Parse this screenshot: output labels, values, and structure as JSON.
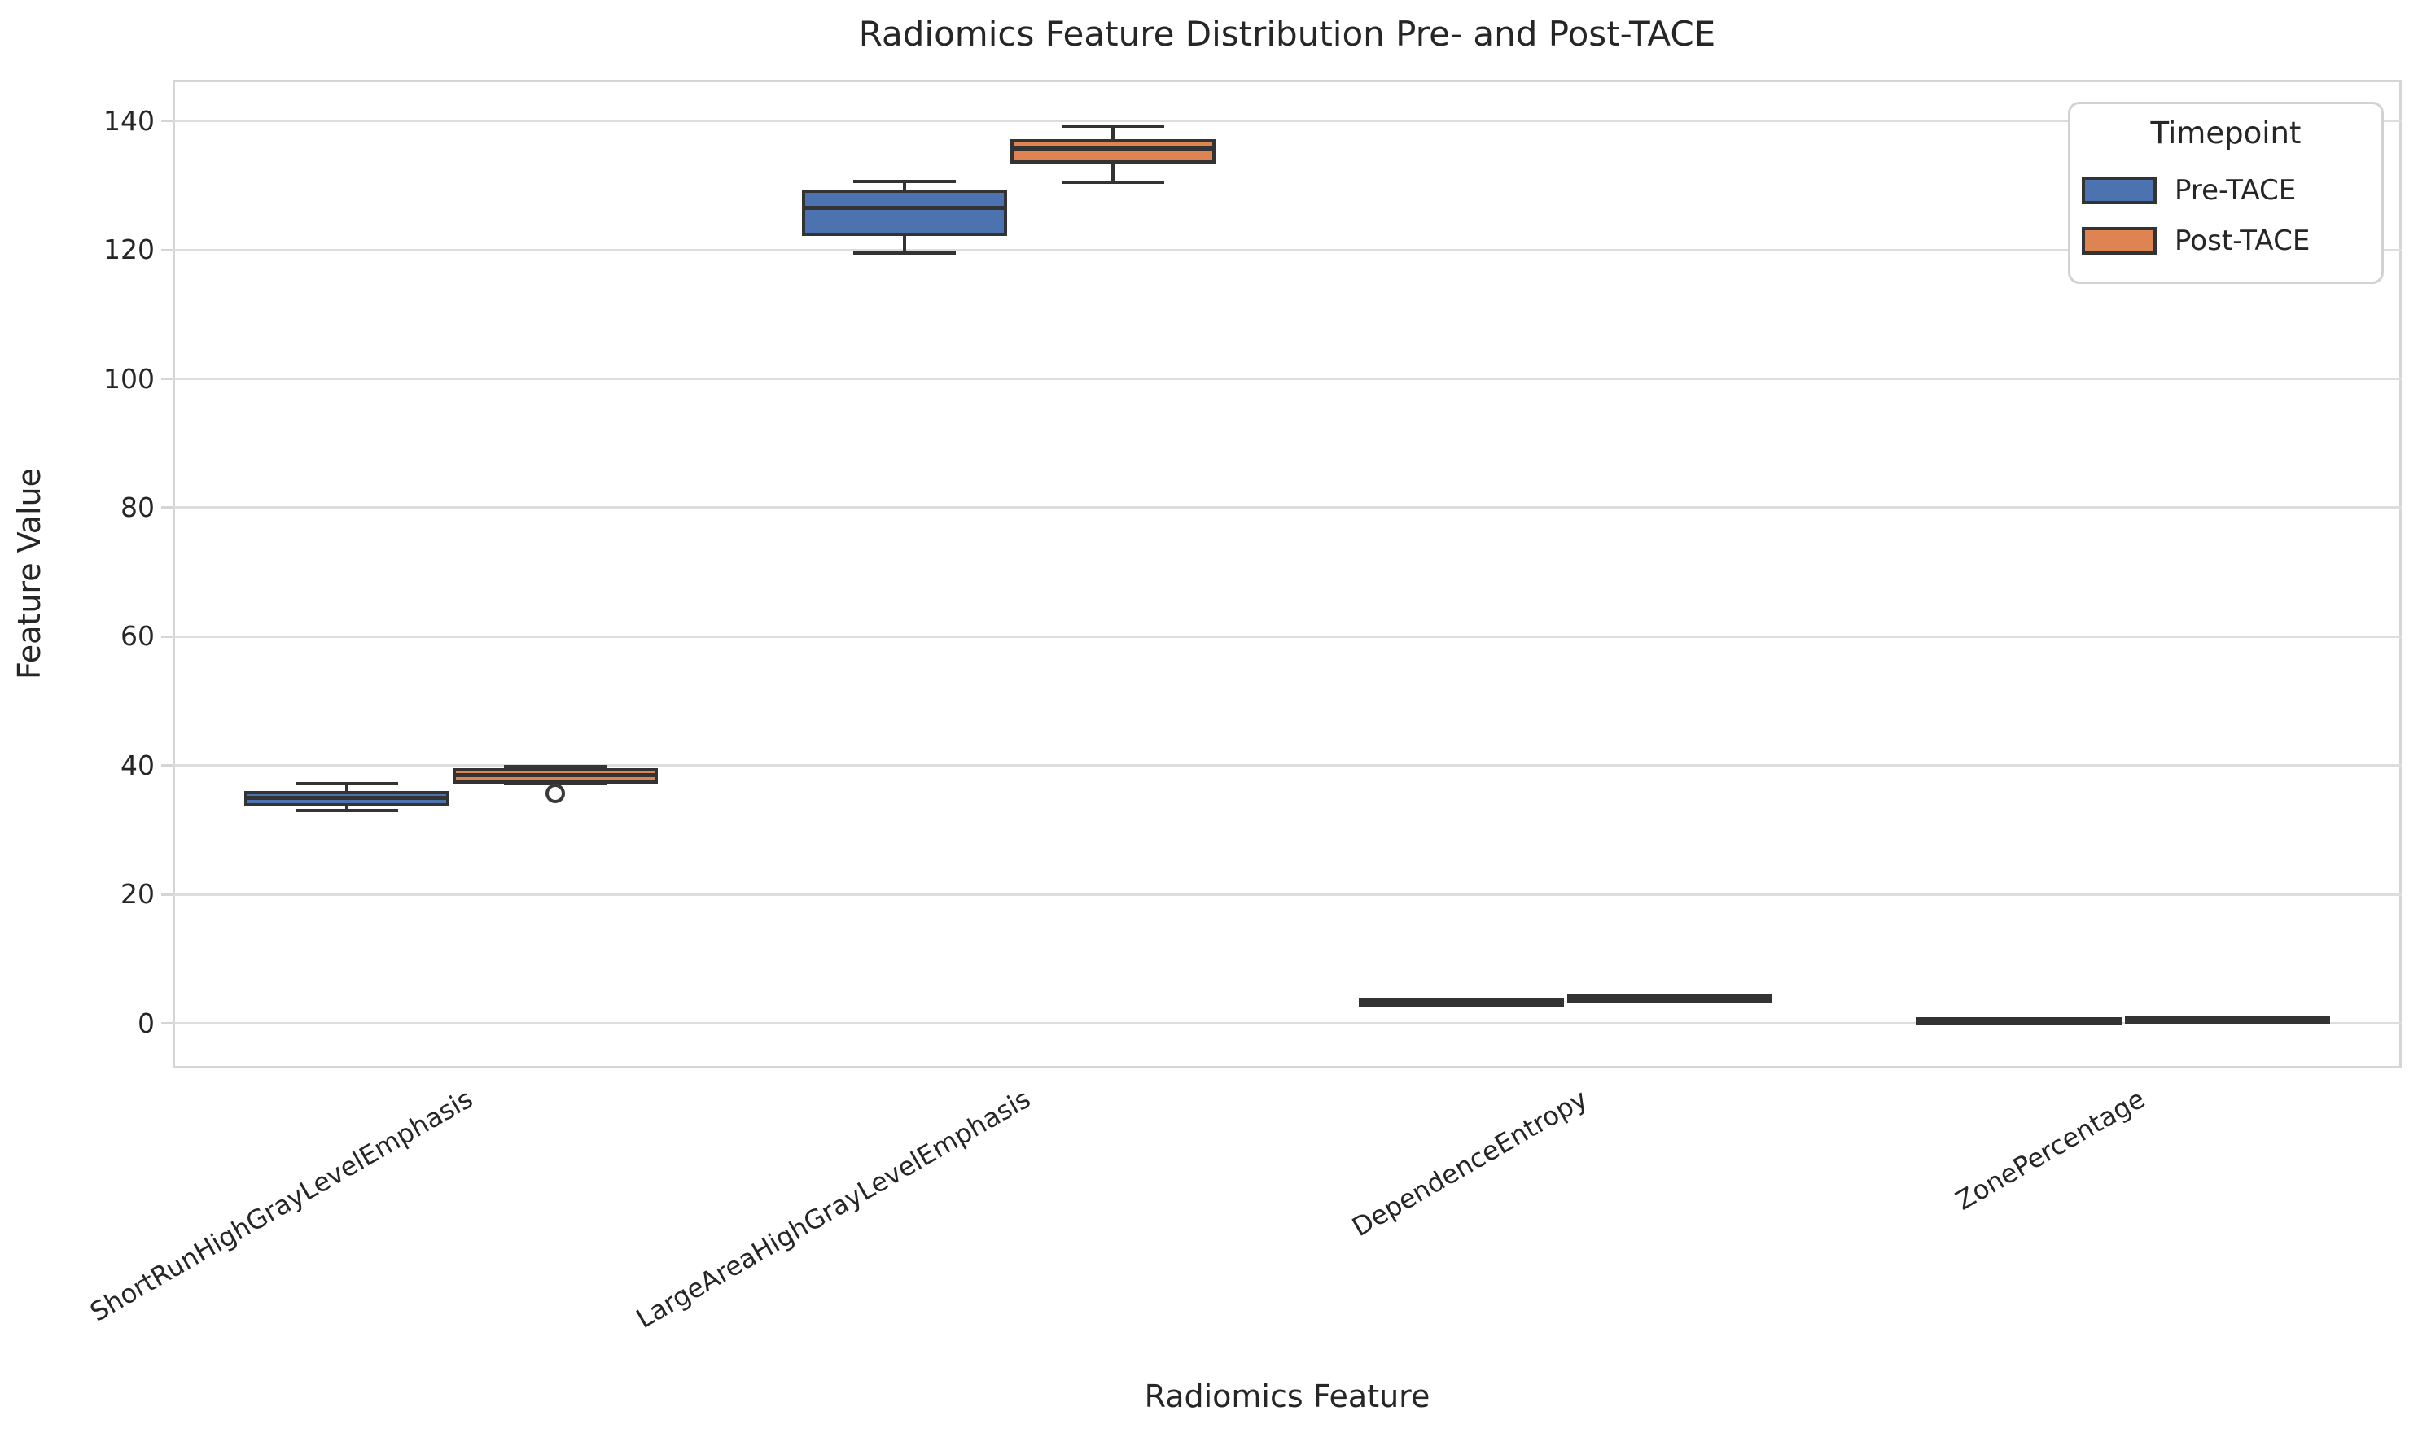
{
  "title": "Radiomics Feature Distribution Pre- and Post-TACE",
  "axes": {
    "xlabel": "Radiomics Feature",
    "ylabel": "Feature Value",
    "yticks": [
      0,
      20,
      40,
      60,
      80,
      100,
      120,
      140
    ]
  },
  "legend": {
    "title": "Timepoint",
    "items": [
      {
        "label": "Pre-TACE",
        "color": "#4C72B0"
      },
      {
        "label": "Post-TACE",
        "color": "#DD8452"
      }
    ]
  },
  "colors": {
    "pre_tace": "#4C72B0",
    "post_tace": "#DD8452",
    "box_edge": "#333333",
    "grid": "#dddddd",
    "text": "#262626"
  },
  "chart_data": {
    "type": "box",
    "title": "Radiomics Feature Distribution Pre- and Post-TACE",
    "xlabel": "Radiomics Feature",
    "ylabel": "Feature Value",
    "ylim": [
      -7,
      146.4
    ],
    "grid": "horizontal",
    "legend_position": "upper right",
    "categories": [
      "ShortRunHighGrayLevelEmphasis",
      "LargeAreaHighGrayLevelEmphasis",
      "DependenceEntropy",
      "ZonePercentage"
    ],
    "series": [
      {
        "name": "Pre-TACE",
        "color": "#4C72B0",
        "boxes": [
          {
            "whislo": 33.0,
            "q1": 34.1,
            "med": 35.0,
            "q3": 35.6,
            "whishi": 37.2,
            "outliers": []
          },
          {
            "whislo": 119.5,
            "q1": 122.6,
            "med": 126.5,
            "q3": 128.8,
            "whishi": 130.6,
            "outliers": []
          },
          {
            "whislo": 2.85,
            "q1": 3.05,
            "med": 3.25,
            "q3": 3.45,
            "whishi": 3.65,
            "outliers": []
          },
          {
            "whislo": 0.1,
            "q1": 0.2,
            "med": 0.3,
            "q3": 0.4,
            "whishi": 0.5,
            "outliers": []
          }
        ]
      },
      {
        "name": "Post-TACE",
        "color": "#DD8452",
        "boxes": [
          {
            "whislo": 37.2,
            "q1": 37.7,
            "med": 38.5,
            "q3": 39.1,
            "whishi": 39.8,
            "outliers": [
              35.7
            ]
          },
          {
            "whislo": 130.5,
            "q1": 133.9,
            "med": 135.7,
            "q3": 136.7,
            "whishi": 139.2,
            "outliers": []
          },
          {
            "whislo": 3.4,
            "q1": 3.6,
            "med": 3.8,
            "q3": 4.0,
            "whishi": 4.2,
            "outliers": []
          },
          {
            "whislo": 0.35,
            "q1": 0.45,
            "med": 0.55,
            "q3": 0.65,
            "whishi": 0.8,
            "outliers": []
          }
        ]
      }
    ]
  }
}
